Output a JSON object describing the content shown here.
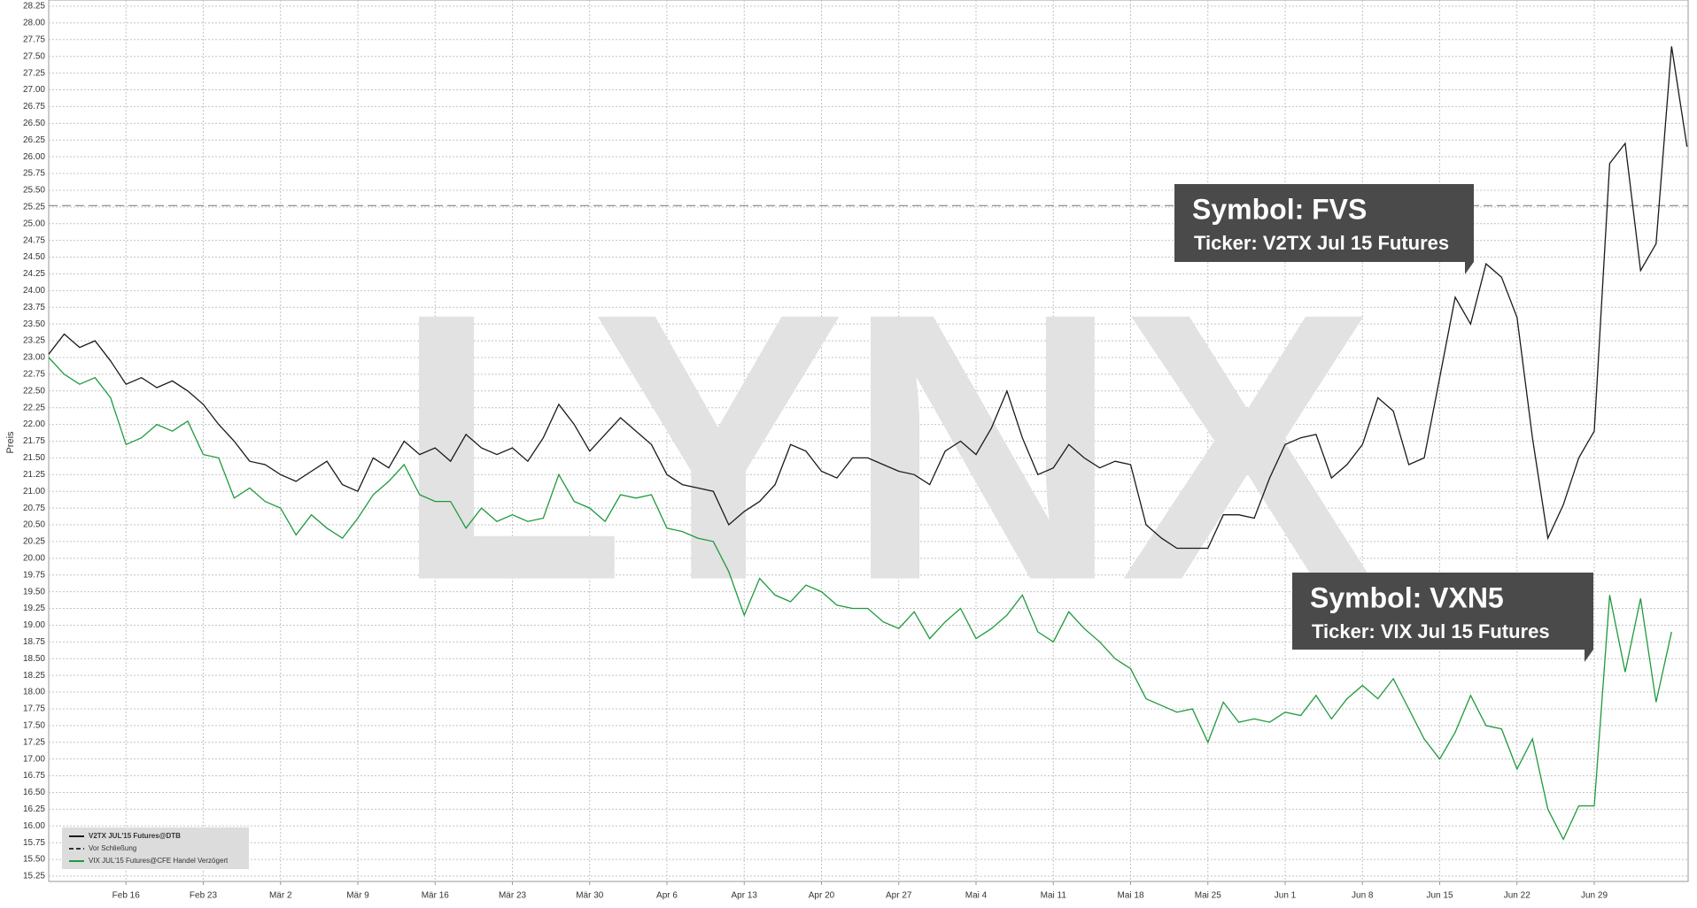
{
  "chart_data": {
    "type": "line",
    "ylabel": "Preis",
    "watermark": "LYNX",
    "categories": [
      null,
      null,
      null,
      null,
      null,
      "Feb 16",
      null,
      null,
      null,
      null,
      "Feb 23",
      null,
      null,
      null,
      null,
      "Mär 2",
      null,
      null,
      null,
      null,
      "Mär 9",
      null,
      null,
      null,
      null,
      "Mär 16",
      null,
      null,
      null,
      null,
      "Mär 23",
      null,
      null,
      null,
      null,
      "Mär 30",
      null,
      null,
      null,
      null,
      "Apr 6",
      null,
      null,
      null,
      null,
      "Apr 13",
      null,
      null,
      null,
      null,
      "Apr 20",
      null,
      null,
      null,
      null,
      "Apr 27",
      null,
      null,
      null,
      null,
      "Mai 4",
      null,
      null,
      null,
      null,
      "Mai 11",
      null,
      null,
      null,
      null,
      "Mai 18",
      null,
      null,
      null,
      null,
      "Mai 25",
      null,
      null,
      null,
      null,
      "Jun 1",
      null,
      null,
      null,
      null,
      "Jun 8",
      null,
      null,
      null,
      null,
      "Jun 15",
      null,
      null,
      null,
      null,
      "Jun 22",
      null,
      null,
      null,
      null,
      "Jun 29",
      null,
      null,
      null,
      null,
      null,
      null
    ],
    "series": [
      {
        "name": "V2TX JUL'15 Futures@DTB",
        "color": "#1a1a1a",
        "values": [
          23.05,
          23.35,
          23.15,
          23.25,
          22.95,
          22.6,
          22.7,
          22.55,
          22.65,
          22.5,
          22.3,
          22.0,
          21.75,
          21.45,
          21.4,
          21.25,
          21.15,
          21.3,
          21.45,
          21.1,
          21.0,
          21.5,
          21.35,
          21.75,
          21.55,
          21.65,
          21.45,
          21.85,
          21.65,
          21.55,
          21.65,
          21.45,
          21.8,
          22.3,
          22.0,
          21.6,
          21.85,
          22.1,
          21.9,
          21.7,
          21.25,
          21.1,
          21.05,
          21.0,
          20.5,
          20.7,
          20.85,
          21.1,
          21.7,
          21.6,
          21.3,
          21.2,
          21.5,
          21.5,
          21.4,
          21.3,
          21.25,
          21.1,
          21.6,
          21.75,
          21.55,
          21.95,
          22.5,
          21.8,
          21.25,
          21.35,
          21.7,
          21.5,
          21.35,
          21.45,
          21.4,
          20.5,
          20.3,
          20.15,
          20.15,
          20.15,
          20.65,
          20.65,
          20.6,
          21.2,
          21.7,
          21.8,
          21.85,
          21.2,
          21.4,
          21.7,
          22.4,
          22.2,
          21.4,
          21.5,
          22.7,
          23.9,
          23.5,
          24.4,
          24.2,
          23.6,
          21.8,
          20.3,
          20.8,
          21.5,
          21.9,
          25.9,
          26.2,
          24.3,
          24.7,
          27.65,
          26.15
        ]
      },
      {
        "name": "VIX JUL'15 Futures@CFE Handel Verzögert",
        "color": "#1e9a3c",
        "values": [
          23.0,
          22.75,
          22.6,
          22.7,
          22.4,
          21.7,
          21.8,
          22.0,
          21.9,
          22.05,
          21.55,
          21.5,
          20.9,
          21.05,
          20.85,
          20.75,
          20.35,
          20.65,
          20.45,
          20.3,
          20.6,
          20.95,
          21.15,
          21.4,
          20.95,
          20.85,
          20.85,
          20.45,
          20.75,
          20.55,
          20.65,
          20.55,
          20.6,
          21.25,
          20.85,
          20.75,
          20.55,
          20.95,
          20.9,
          20.95,
          20.45,
          20.4,
          20.3,
          20.25,
          19.8,
          19.15,
          19.7,
          19.45,
          19.35,
          19.6,
          19.5,
          19.3,
          19.25,
          19.25,
          19.05,
          18.95,
          19.2,
          18.8,
          19.05,
          19.25,
          18.8,
          18.95,
          19.15,
          19.45,
          18.9,
          18.75,
          19.2,
          18.95,
          18.75,
          18.5,
          18.35,
          17.9,
          17.8,
          17.7,
          17.75,
          17.25,
          17.85,
          17.55,
          17.6,
          17.55,
          17.7,
          17.65,
          17.95,
          17.6,
          17.9,
          18.1,
          17.9,
          18.2,
          17.75,
          17.3,
          17.0,
          17.4,
          17.95,
          17.5,
          17.45,
          16.85,
          17.3,
          16.25,
          15.8,
          16.3,
          16.3,
          19.45,
          18.3,
          19.4,
          17.85,
          18.9,
          null
        ]
      }
    ],
    "reference_line": {
      "name": "Vor Schließung",
      "value": 25.27,
      "color": "#888888"
    },
    "annotations": [
      {
        "title": "Symbol: FVS",
        "text": "Ticker: V2TX Jul 15 Futures"
      },
      {
        "title": "Symbol: VXN5",
        "text": "Ticker: VIX Jul 15 Futures"
      }
    ],
    "ylim": [
      15.25,
      28.25
    ],
    "yticks": [
      15.25,
      {
        "value": 15.5,
        "label": "15.50"
      },
      15.75,
      {
        "value": 16,
        "label": "16.00"
      },
      16.25,
      {
        "value": 16.5,
        "label": "16.50"
      },
      16.75,
      {
        "value": 17,
        "label": "17.00"
      },
      17.25,
      {
        "value": 17.5,
        "label": "17.50"
      },
      17.75,
      {
        "value": 18,
        "label": "18.00"
      },
      18.25,
      {
        "value": 18.5,
        "label": "18.50"
      },
      18.75,
      {
        "value": 19,
        "label": "19.00"
      },
      19.25,
      {
        "value": 19.5,
        "label": "19.50"
      },
      19.75,
      {
        "value": 20,
        "label": "20.00"
      },
      20.25,
      {
        "value": 20.5,
        "label": "20.50"
      },
      20.75,
      {
        "value": 21,
        "label": "21.00"
      },
      21.25,
      {
        "value": 21.5,
        "label": "21.50"
      },
      21.75,
      {
        "value": 22,
        "label": "22.00"
      },
      22.25,
      {
        "value": 22.5,
        "label": "22.50"
      },
      22.75,
      {
        "value": 23,
        "label": "23.00"
      },
      23.25,
      {
        "value": 23.5,
        "label": "23.50"
      },
      23.75,
      {
        "value": 24,
        "label": "24.00"
      },
      24.25,
      {
        "value": 24.5,
        "label": "24.50"
      },
      24.75,
      {
        "value": 25,
        "label": "25.00"
      },
      25.25,
      {
        "value": 25.5,
        "label": "25.50"
      },
      25.75,
      {
        "value": 26,
        "label": "26.00"
      },
      26.25,
      {
        "value": 26.5,
        "label": "26.50"
      },
      26.75,
      {
        "value": 27,
        "label": "27.00"
      },
      27.25,
      {
        "value": 27.5,
        "label": "27.50"
      },
      27.75,
      {
        "value": 28,
        "label": "28.00"
      },
      28.25
    ],
    "grid": true
  }
}
